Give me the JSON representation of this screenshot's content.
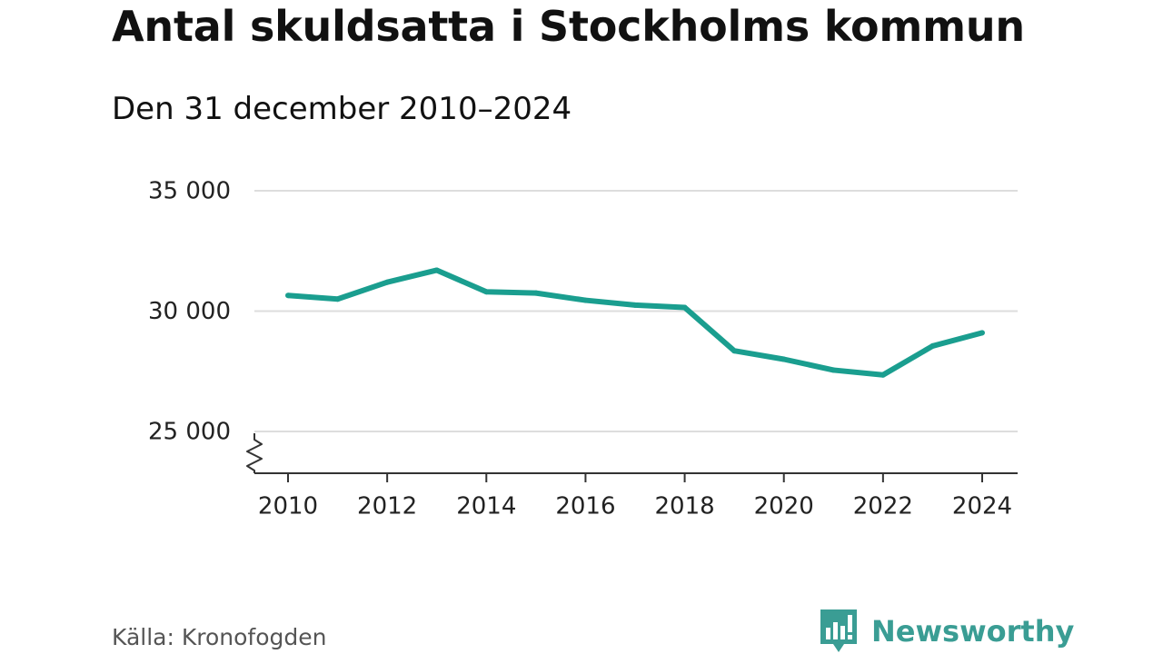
{
  "chart_data": {
    "type": "line",
    "title": "Antal skuldsatta i Stockholms kommun",
    "subtitle": "Den 31 december 2010–2024",
    "x": [
      2010,
      2011,
      2012,
      2013,
      2014,
      2015,
      2016,
      2017,
      2018,
      2019,
      2020,
      2021,
      2022,
      2023,
      2024
    ],
    "series": [
      {
        "name": "Antal skuldsatta",
        "values": [
          30650,
          30500,
          31200,
          31700,
          30800,
          30750,
          30450,
          30250,
          30150,
          28350,
          28000,
          27550,
          27350,
          28550,
          29100
        ],
        "color": "#1a9e8f"
      }
    ],
    "xticks": [
      2010,
      2012,
      2014,
      2016,
      2018,
      2020,
      2022,
      2024
    ],
    "xtick_labels": [
      "2010",
      "2012",
      "2014",
      "2016",
      "2018",
      "2020",
      "2022",
      "2024"
    ],
    "yticks": [
      25000,
      30000,
      35000
    ],
    "ytick_labels": [
      "25 000",
      "30 000",
      "35 000"
    ],
    "ylim": [
      25000,
      35000
    ],
    "xlabel": "",
    "ylabel": "",
    "grid": true,
    "y_axis_break": true,
    "gridline_color": "#dddddd",
    "axis_color": "#333333"
  },
  "source_text": "Källa: Kronofogden",
  "brand": {
    "name": "Newsworthy",
    "color": "#3a9d94",
    "icon": "bar-chart-icon"
  }
}
